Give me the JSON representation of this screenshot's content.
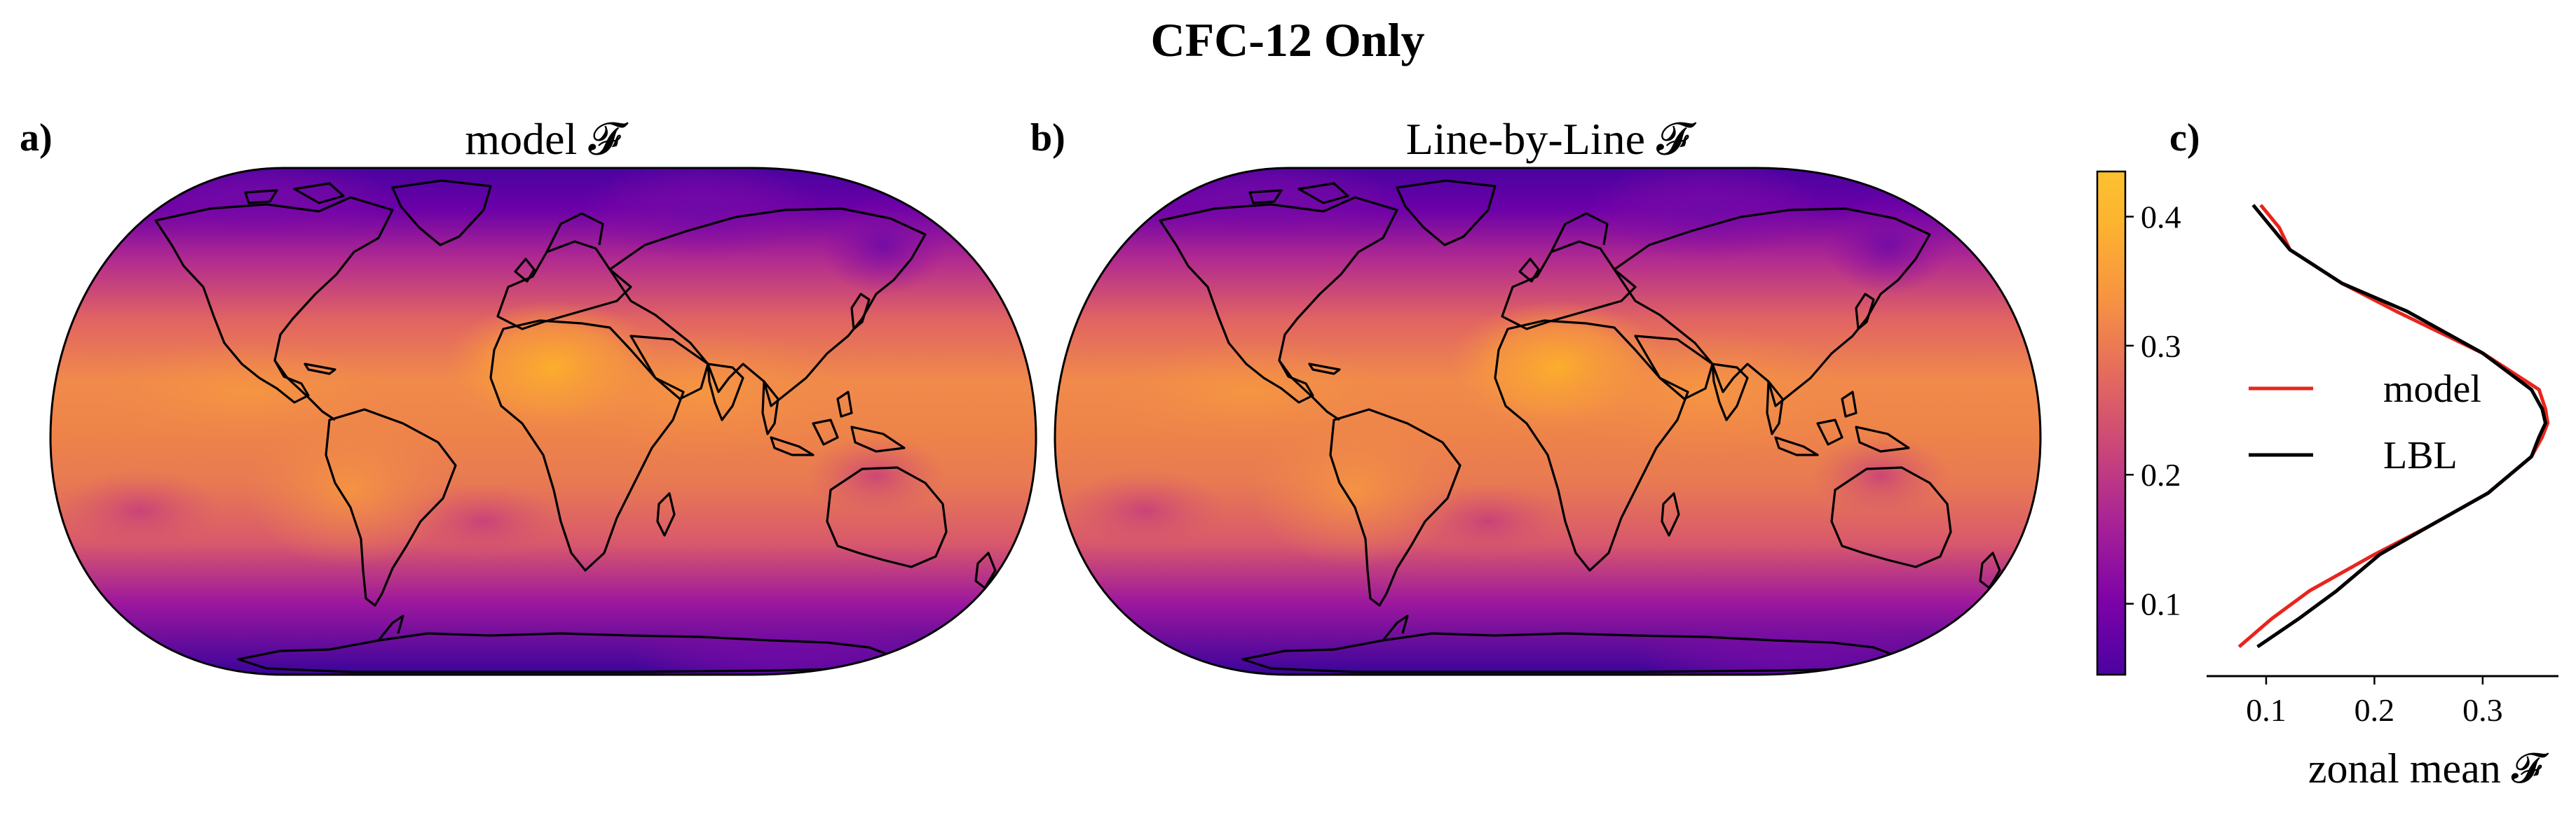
{
  "figure": {
    "suptitle": "CFC-12 Only",
    "colormap": [
      "#0d0887",
      "#41049d",
      "#6a00a8",
      "#8f0da4",
      "#b12a90",
      "#cc4778",
      "#e16462",
      "#f2844b",
      "#fca636",
      "#fcce25"
    ]
  },
  "panels": {
    "a": {
      "label": "a)",
      "title": "model 𝓕"
    },
    "b": {
      "label": "b)",
      "title": "Line-by-Line 𝓕"
    },
    "colorbar": {
      "ticks": [
        0.1,
        0.2,
        0.3,
        0.4
      ],
      "tick_labels": [
        "0.1",
        "0.2",
        "0.3",
        "0.4"
      ],
      "range": [
        0.045,
        0.435
      ]
    },
    "c": {
      "label": "c)",
      "xlabel": "zonal mean 𝓕",
      "xticks": [
        0.1,
        0.2,
        0.3
      ],
      "xtick_labels": [
        "0.1",
        "0.2",
        "0.3"
      ],
      "legend": {
        "placement": "center",
        "entries": [
          "model",
          "LBL"
        ]
      }
    }
  },
  "chart_data": {
    "type": "line",
    "title": "",
    "xlabel": "zonal mean 𝓕",
    "ylabel": "",
    "xlim": [
      0.045,
      0.37
    ],
    "ylim": [
      -90,
      90
    ],
    "legend_position": "center",
    "series": [
      {
        "name": "model",
        "color": "#e8251d",
        "x": [
          0.075,
          0.105,
          0.14,
          0.2,
          0.25,
          0.305,
          0.345,
          0.355,
          0.36,
          0.358,
          0.352,
          0.3,
          0.22,
          0.17,
          0.122,
          0.112,
          0.095
        ],
        "y": [
          -80,
          -70,
          -60,
          -47,
          -37,
          -25,
          -12,
          -5,
          0,
          5,
          12,
          25,
          40,
          50,
          62,
          70,
          78
        ]
      },
      {
        "name": "LBL",
        "color": "#000000",
        "x": [
          0.092,
          0.13,
          0.165,
          0.205,
          0.25,
          0.305,
          0.345,
          0.352,
          0.358,
          0.355,
          0.345,
          0.3,
          0.23,
          0.17,
          0.122,
          0.105,
          0.088
        ],
        "y": [
          -80,
          -70,
          -60,
          -47,
          -37,
          -25,
          -12,
          -5,
          0,
          5,
          12,
          25,
          40,
          50,
          62,
          70,
          78
        ]
      }
    ]
  }
}
